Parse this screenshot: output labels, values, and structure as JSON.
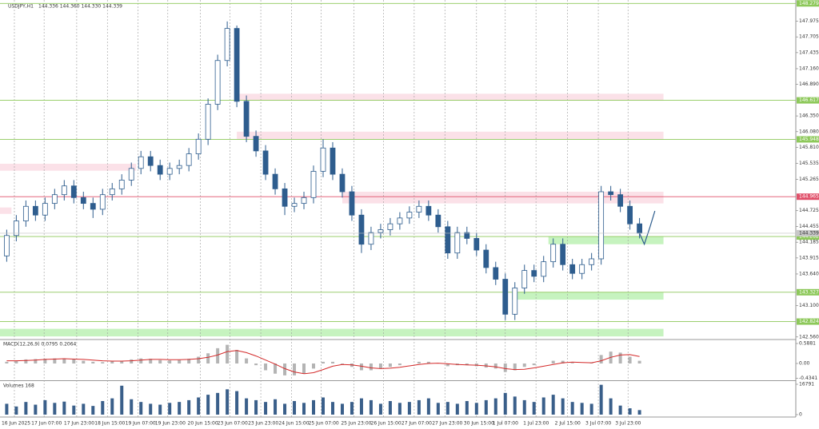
{
  "chart_data": [
    {
      "type": "candlestick",
      "title": "USDJPY,H1",
      "quote": "144.336 144.360 144.330 144.339",
      "color": "#2e5d8e",
      "grid": true,
      "open": [
        143.95,
        144.3,
        144.55,
        144.8,
        144.65,
        144.85,
        145.0,
        145.15,
        144.95,
        144.85,
        144.75,
        145.0,
        145.1,
        145.25,
        145.45,
        145.65,
        145.5,
        145.35,
        145.45,
        145.5,
        145.7,
        145.95,
        146.55,
        147.3,
        147.85,
        146.6,
        146.0,
        145.75,
        145.35,
        145.1,
        144.8,
        144.85,
        144.95,
        145.4,
        145.8,
        145.35,
        145.05,
        144.65,
        144.15,
        144.35,
        144.4,
        144.5,
        144.6,
        144.7,
        144.8,
        144.65,
        144.45,
        144.0,
        144.35,
        144.25,
        144.05,
        143.75,
        143.55,
        142.95,
        143.4,
        143.7,
        143.6,
        143.85,
        144.15,
        143.8,
        143.65,
        143.8,
        143.9,
        145.05,
        145.0,
        144.8,
        144.5
      ],
      "high": [
        144.4,
        144.65,
        144.9,
        144.9,
        144.95,
        145.1,
        145.25,
        145.25,
        145.05,
        144.95,
        145.1,
        145.2,
        145.35,
        145.55,
        145.75,
        145.75,
        145.6,
        145.55,
        145.6,
        145.8,
        146.05,
        146.65,
        147.4,
        147.97,
        147.9,
        146.7,
        146.1,
        145.85,
        145.45,
        145.2,
        144.95,
        145.05,
        145.5,
        145.95,
        145.9,
        145.45,
        145.15,
        144.75,
        144.45,
        144.5,
        144.6,
        144.7,
        144.8,
        144.9,
        144.9,
        144.75,
        144.55,
        144.45,
        144.45,
        144.35,
        144.15,
        143.85,
        143.65,
        143.5,
        143.8,
        143.8,
        143.95,
        144.25,
        144.25,
        143.9,
        143.9,
        144.0,
        145.15,
        145.15,
        145.1,
        144.9,
        144.6
      ],
      "low": [
        143.85,
        144.2,
        144.45,
        144.55,
        144.55,
        144.75,
        144.9,
        144.85,
        144.75,
        144.6,
        144.65,
        144.9,
        145.0,
        145.15,
        145.35,
        145.4,
        145.25,
        145.25,
        145.35,
        145.4,
        145.6,
        145.85,
        146.45,
        147.2,
        146.5,
        145.9,
        145.65,
        145.25,
        145.0,
        144.65,
        144.7,
        144.75,
        144.85,
        145.3,
        145.25,
        144.95,
        144.55,
        144.0,
        144.05,
        144.25,
        144.3,
        144.4,
        144.5,
        144.6,
        144.55,
        144.35,
        143.9,
        143.9,
        144.15,
        143.95,
        143.65,
        143.45,
        142.85,
        142.85,
        143.3,
        143.5,
        143.5,
        143.75,
        143.7,
        143.55,
        143.55,
        143.7,
        143.8,
        144.9,
        144.7,
        144.4,
        144.25
      ],
      "close": [
        144.3,
        144.55,
        144.8,
        144.65,
        144.85,
        145.0,
        145.15,
        144.95,
        144.85,
        144.75,
        145.0,
        145.1,
        145.25,
        145.45,
        145.65,
        145.5,
        145.35,
        145.45,
        145.5,
        145.7,
        145.95,
        146.55,
        147.3,
        147.85,
        146.6,
        146.0,
        145.75,
        145.35,
        145.1,
        144.8,
        144.85,
        144.95,
        145.4,
        145.8,
        145.35,
        145.05,
        144.65,
        144.15,
        144.35,
        144.4,
        144.5,
        144.6,
        144.7,
        144.8,
        144.65,
        144.45,
        144.0,
        144.35,
        144.25,
        144.05,
        143.75,
        143.55,
        142.95,
        143.4,
        143.7,
        143.6,
        143.85,
        144.15,
        143.8,
        143.65,
        143.8,
        143.9,
        145.05,
        145.0,
        144.8,
        144.5,
        144.34
      ],
      "forecast": {
        "x": [
          66,
          66.5,
          67.1,
          67.6
        ],
        "values": [
          144.34,
          144.15,
          144.45,
          144.72
        ]
      },
      "xlim": [
        -0.7,
        82.3
      ],
      "xticks": [
        {
          "value": 0.8,
          "label": "16 Jun 2025"
        },
        {
          "value": 3.9,
          "label": "17 Jun 07:00"
        },
        {
          "value": 7.3,
          "label": "17 Jun 23:00"
        },
        {
          "value": 10.5,
          "label": "18 Jun 15:00"
        },
        {
          "value": 13.7,
          "label": "19 Jun 07:00"
        },
        {
          "value": 16.8,
          "label": "19 Jun 23:00"
        },
        {
          "value": 20.2,
          "label": "20 Jun 15:00"
        },
        {
          "value": 23.3,
          "label": "23 Jun 07:00"
        },
        {
          "value": 26.5,
          "label": "23 Jun 23:00"
        },
        {
          "value": 29.7,
          "label": "24 Jun 15:00"
        },
        {
          "value": 32.8,
          "label": "25 Jun 07:00"
        },
        {
          "value": 36.2,
          "label": "25 Jun 23:00"
        },
        {
          "value": 39.3,
          "label": "26 Jun 15:00"
        },
        {
          "value": 42.5,
          "label": "27 Jun 07:00"
        },
        {
          "value": 45.7,
          "label": "27 Jun 23:00"
        },
        {
          "value": 49.0,
          "label": "30 Jun 15:00"
        },
        {
          "value": 52.0,
          "label": "1 Jul 07:00"
        },
        {
          "value": 55.2,
          "label": "1 Jul 23:00"
        },
        {
          "value": 58.5,
          "label": "2 Jul 15:00"
        },
        {
          "value": 61.7,
          "label": "3 Jul 07:00"
        },
        {
          "value": 64.8,
          "label": "3 Jul 23:00"
        }
      ],
      "ylim": [
        142.53,
        148.31
      ],
      "yticks": [
        147.975,
        147.705,
        147.435,
        {
          "value": 147.16,
          "label": "147.160"
        },
        {
          "value": 146.89,
          "label": "146.890"
        },
        {
          "value": 146.35,
          "label": "146.350"
        },
        {
          "value": 146.08,
          "label": "146.080"
        },
        {
          "value": 145.81,
          "label": "145.810"
        },
        145.535,
        145.265,
        144.725,
        144.455,
        144.185,
        143.915,
        {
          "value": 143.64,
          "label": "143.640"
        },
        {
          "value": 143.1,
          "label": "143.100"
        },
        {
          "value": 142.56,
          "label": "142.560"
        }
      ],
      "levels": [
        {
          "value": 148.279,
          "color": "#8dc85a"
        },
        {
          "value": 146.617,
          "color": "#8dc85a"
        },
        {
          "value": 145.948,
          "color": "#8dc85a"
        },
        {
          "value": 144.965,
          "color": "#e0506a"
        },
        {
          "value": 144.282,
          "color": "#8dc85a"
        },
        {
          "value": 143.327,
          "color": "#8dc85a"
        },
        {
          "value": 142.824,
          "color": "#8dc85a"
        }
      ],
      "zones": [
        {
          "low": 146.61,
          "high": 146.73,
          "start": 24,
          "end": 68.5,
          "color": "#fbe1e8"
        },
        {
          "low": 145.95,
          "high": 146.08,
          "start": 24,
          "end": 68.5,
          "color": "#fbe1e8"
        },
        {
          "low": 145.41,
          "high": 145.53,
          "start": -0.7,
          "end": 13.5,
          "color": "#fbe1e8"
        },
        {
          "low": 144.85,
          "high": 145.05,
          "start": 35,
          "end": 68.5,
          "color": "#fbe1e8"
        },
        {
          "low": 144.67,
          "high": 144.78,
          "start": -0.7,
          "end": 0.5,
          "color": "#fbe1e8"
        },
        {
          "low": 144.15,
          "high": 144.28,
          "start": 56.5,
          "end": 68.5,
          "color": "#c6f3bf"
        },
        {
          "low": 143.2,
          "high": 143.33,
          "start": 52.7,
          "end": 68.5,
          "color": "#c6f3bf"
        },
        {
          "low": 142.57,
          "high": 142.7,
          "start": -0.7,
          "end": 68.5,
          "color": "#c6f3bf"
        }
      ],
      "current_price": 144.339
    },
    {
      "type": "macd",
      "title": "MACD(12,26,9) 0.0795 0.2064",
      "color": "#b4b4b4",
      "signal_color": "#d42a2a",
      "histogram": [
        0.05,
        0.08,
        0.12,
        0.13,
        0.14,
        0.15,
        0.14,
        0.12,
        0.08,
        0.05,
        0.04,
        0.06,
        0.08,
        0.12,
        0.15,
        0.14,
        0.1,
        0.09,
        0.1,
        0.14,
        0.2,
        0.3,
        0.45,
        0.55,
        0.4,
        0.15,
        -0.05,
        -0.2,
        -0.3,
        -0.35,
        -0.35,
        -0.3,
        -0.15,
        0.05,
        0.05,
        -0.02,
        -0.1,
        -0.2,
        -0.2,
        -0.15,
        -0.1,
        -0.05,
        0.0,
        0.05,
        0.05,
        0.0,
        -0.08,
        -0.05,
        -0.05,
        -0.08,
        -0.12,
        -0.15,
        -0.25,
        -0.2,
        -0.1,
        -0.05,
        0.0,
        0.08,
        0.08,
        0.02,
        0.0,
        0.02,
        0.25,
        0.35,
        0.32,
        0.2,
        0.0795
      ],
      "signal": [
        0.08,
        0.08,
        0.09,
        0.1,
        0.12,
        0.13,
        0.14,
        0.13,
        0.12,
        0.1,
        0.08,
        0.07,
        0.07,
        0.08,
        0.1,
        0.12,
        0.12,
        0.11,
        0.11,
        0.12,
        0.14,
        0.18,
        0.25,
        0.35,
        0.38,
        0.32,
        0.22,
        0.1,
        -0.02,
        -0.15,
        -0.25,
        -0.3,
        -0.27,
        -0.18,
        -0.08,
        -0.03,
        -0.04,
        -0.08,
        -0.13,
        -0.15,
        -0.14,
        -0.11,
        -0.07,
        -0.03,
        0.0,
        0.01,
        -0.01,
        -0.03,
        -0.04,
        -0.05,
        -0.07,
        -0.1,
        -0.15,
        -0.18,
        -0.17,
        -0.13,
        -0.08,
        -0.03,
        0.02,
        0.04,
        0.03,
        0.02,
        0.08,
        0.18,
        0.25,
        0.26,
        0.2064
      ],
      "ylim": [
        -0.494,
        0.682
      ],
      "yticks": [
        0.5881,
        {
          "value": 0,
          "label": "0.00"
        },
        -0.4341
      ]
    },
    {
      "type": "bar",
      "title": "Volumes 168",
      "color": "#3a5f8a",
      "values": [
        6000,
        4500,
        7000,
        5500,
        8000,
        6500,
        7200,
        5000,
        6000,
        4800,
        7500,
        9000,
        16000,
        8500,
        7000,
        6000,
        5500,
        6500,
        7000,
        8000,
        9500,
        11000,
        12000,
        14000,
        13000,
        9000,
        8000,
        7000,
        8500,
        6000,
        7500,
        6500,
        8000,
        9500,
        7000,
        6000,
        7000,
        9000,
        8000,
        6000,
        7500,
        6500,
        7000,
        8000,
        9000,
        6500,
        7000,
        6000,
        7500,
        6500,
        8000,
        9000,
        12000,
        10000,
        8000,
        7000,
        9500,
        11000,
        9000,
        7000,
        6500,
        6000,
        16500,
        9000,
        5000,
        3500,
        2500
      ],
      "ylim": [
        0,
        18560
      ],
      "yticks": [
        16791,
        0
      ]
    }
  ]
}
